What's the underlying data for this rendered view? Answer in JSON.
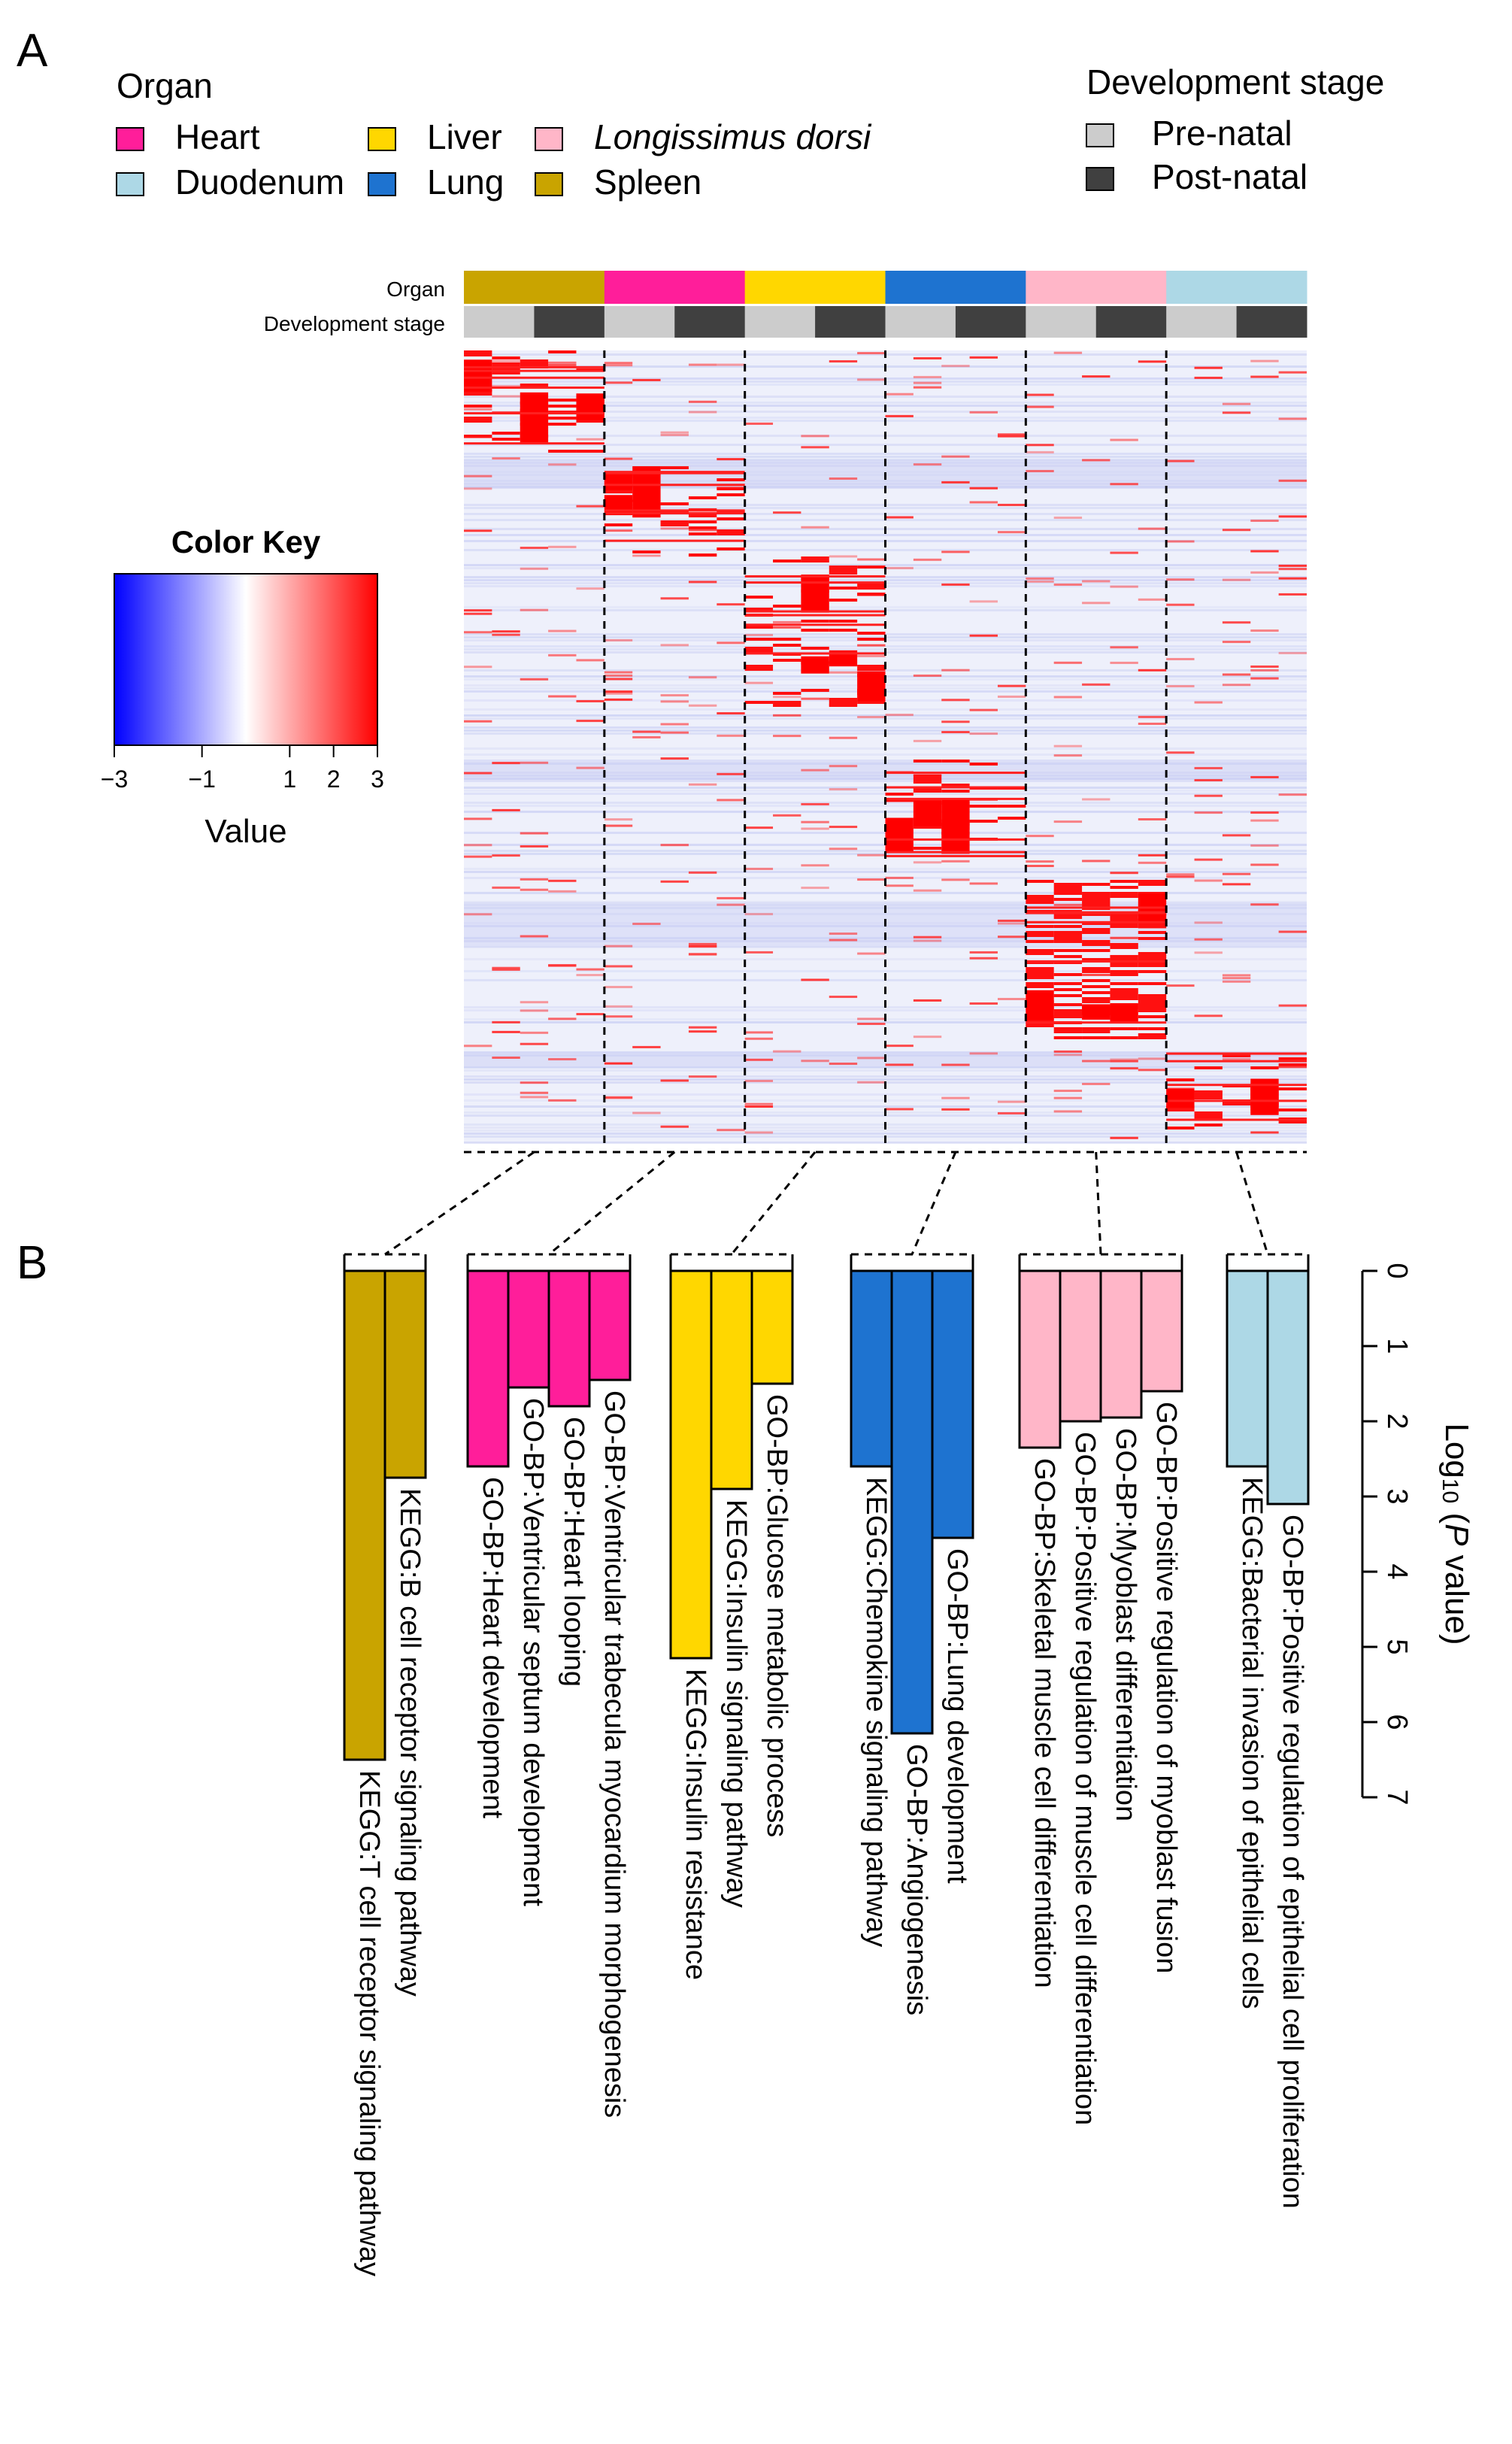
{
  "panels": {
    "a": "A",
    "b": "B"
  },
  "legend": {
    "organ_title": "Organ",
    "organs": [
      {
        "label": "Heart",
        "color": "#ff1e9a"
      },
      {
        "label": "Duodenum",
        "color": "#add8e6"
      },
      {
        "label": "Liver",
        "color": "#ffd700"
      },
      {
        "label": "Lung",
        "color": "#1e73d0"
      },
      {
        "label": "Longissimus dorsi",
        "color": "#ffb6c8"
      },
      {
        "label": "Spleen",
        "color": "#c9a400"
      }
    ],
    "stage_title": "Development stage",
    "stages": [
      {
        "label": "Pre-natal",
        "color": "#cccccc"
      },
      {
        "label": "Post-natal",
        "color": "#404040"
      }
    ]
  },
  "color_key": {
    "title": "Color Key",
    "xlabel": "Value",
    "range": [
      -3,
      3
    ],
    "ticks": [
      -3,
      -1,
      1,
      2,
      3
    ],
    "colors": [
      "#0000ff",
      "#ffffff",
      "#ff0000"
    ]
  },
  "heatmap": {
    "row_labels": [
      "Organ",
      "Development stage"
    ],
    "column_groups": [
      "Spleen",
      "Heart",
      "Liver",
      "Lung",
      "Longissimus dorsi",
      "Duodenum"
    ],
    "group_colors": [
      "#c9a400",
      "#ff1e9a",
      "#ffd700",
      "#1e73d0",
      "#ffb6c8",
      "#add8e6"
    ],
    "stage_colors": [
      "#cccccc",
      "#404040"
    ]
  },
  "chart_data": {
    "type": "bar",
    "axis_label_prefix": "Log",
    "axis_label_sub": "10",
    "axis_label_suffix": " (",
    "axis_label_italic": "P",
    "axis_label_end": " value)",
    "ylim": [
      0,
      7
    ],
    "yticks": [
      0,
      1,
      2,
      3,
      4,
      5,
      6,
      7
    ],
    "groups": [
      {
        "organ": "Spleen",
        "color": "#c9a400",
        "bars": [
          {
            "term": "KEGG:T cell receptor signaling pathway",
            "value": 6.5
          },
          {
            "term": "KEGG:B cell receptor signaling pathway",
            "value": 2.75
          }
        ]
      },
      {
        "organ": "Heart",
        "color": "#ff1e9a",
        "bars": [
          {
            "term": "GO-BP:Heart development",
            "value": 2.6
          },
          {
            "term": "GO-BP:Ventricular septum development",
            "value": 1.55
          },
          {
            "term": "GO-BP:Heart looping",
            "value": 1.8
          },
          {
            "term": "GO-BP:Ventricular trabecula myocardium morphogenesis",
            "value": 1.45
          }
        ]
      },
      {
        "organ": "Liver",
        "color": "#ffd700",
        "bars": [
          {
            "term": "KEGG:Insulin resistance",
            "value": 5.15
          },
          {
            "term": "KEGG:Insulin signaling pathway",
            "value": 2.9
          },
          {
            "term": "GO-BP:Glucose metabolic process",
            "value": 1.5
          }
        ]
      },
      {
        "organ": "Lung",
        "color": "#1e73d0",
        "bars": [
          {
            "term": "KEGG:Chemokine signaling pathway",
            "value": 2.6
          },
          {
            "term": "GO-BP:Angiogenesis",
            "value": 6.15
          },
          {
            "term": "GO-BP:Lung development",
            "value": 3.55
          }
        ]
      },
      {
        "organ": "Longissimus dorsi",
        "color": "#ffb6c8",
        "bars": [
          {
            "term": "GO-BP:Skeletal muscle cell differentiation",
            "value": 2.35
          },
          {
            "term": "GO-BP:Positive regulation of muscle cell differentiation",
            "value": 2.0
          },
          {
            "term": "GO-BP:Myoblast differentiation",
            "value": 1.95
          },
          {
            "term": "GO-BP:Positive regulation of myoblast fusion",
            "value": 1.6
          }
        ]
      },
      {
        "organ": "Duodenum",
        "color": "#add8e6",
        "bars": [
          {
            "term": "KEGG:Bacterial invasion of epithelial cells",
            "value": 2.6
          },
          {
            "term": "GO-BP:Positive regulation of epithelial cell proliferation",
            "value": 3.1
          }
        ]
      }
    ]
  }
}
